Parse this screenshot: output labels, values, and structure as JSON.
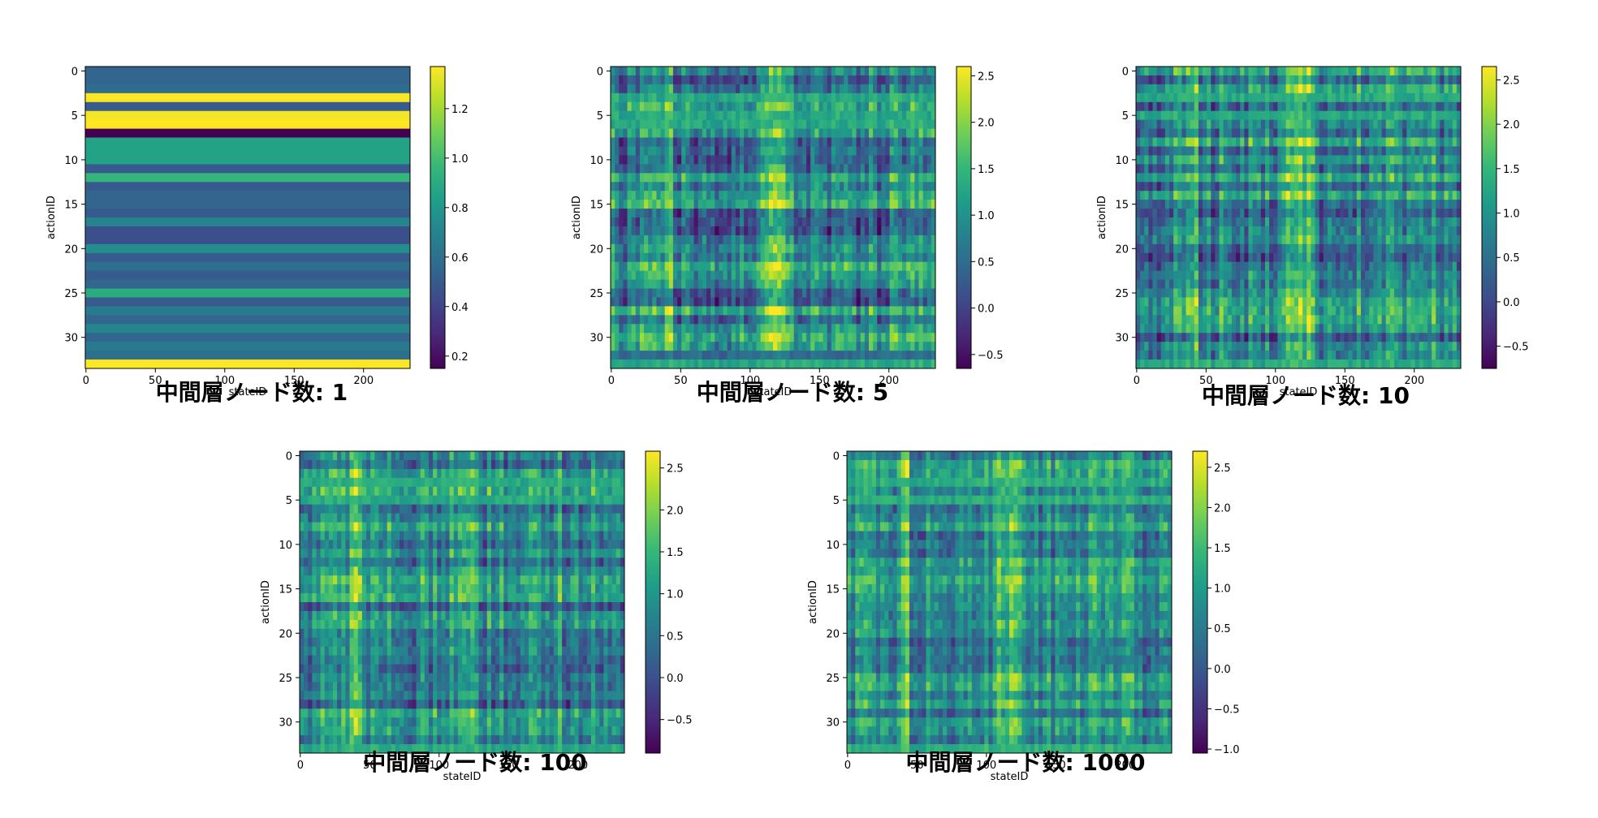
{
  "colors": {
    "colormap": "viridis",
    "viridis_stops": [
      "#440154",
      "#482878",
      "#3e4989",
      "#31688e",
      "#26828e",
      "#1f9e89",
      "#35b779",
      "#6ece58",
      "#b5de2b",
      "#fde725"
    ]
  },
  "chart_data": [
    {
      "type": "heatmap",
      "title": "中間層ノード数: 1",
      "xlabel": "stateID",
      "ylabel": "actionID",
      "n_cols": 234,
      "n_rows": 34,
      "x_ticks": [
        0,
        50,
        100,
        150,
        200
      ],
      "y_ticks": [
        0,
        5,
        10,
        15,
        20,
        25,
        30
      ],
      "colorbar": {
        "min": 0.15,
        "max": 1.37,
        "ticks": [
          0.2,
          0.4,
          0.6,
          0.8,
          1.0,
          1.2
        ],
        "tick_labels": [
          "0.2",
          "0.4",
          "0.6",
          "0.8",
          "1.0",
          "1.2"
        ]
      },
      "row_values": [
        0.55,
        0.55,
        0.58,
        1.37,
        0.5,
        1.35,
        1.37,
        0.15,
        0.85,
        0.85,
        0.85,
        0.5,
        0.95,
        0.5,
        0.55,
        0.55,
        0.5,
        0.7,
        0.45,
        0.45,
        0.75,
        0.5,
        0.6,
        0.5,
        0.55,
        0.9,
        0.5,
        0.65,
        0.55,
        0.7,
        0.55,
        0.65,
        0.6,
        1.37
      ],
      "pattern": "rows"
    },
    {
      "type": "heatmap",
      "title": "中間層ノード数: 5",
      "xlabel": "stateID",
      "ylabel": "actionID",
      "n_cols": 234,
      "n_rows": 34,
      "x_ticks": [
        0,
        50,
        100,
        150,
        200
      ],
      "y_ticks": [
        0,
        5,
        10,
        15,
        20,
        25,
        30
      ],
      "colorbar": {
        "min": -0.65,
        "max": 2.6,
        "ticks": [
          -0.5,
          0.0,
          0.5,
          1.0,
          1.5,
          2.0,
          2.5
        ],
        "tick_labels": [
          "−0.5",
          "0.0",
          "0.5",
          "1.0",
          "1.5",
          "2.0",
          "2.5"
        ]
      },
      "pattern": "columns",
      "seed": 5,
      "uniform_rows": {
        "3": 1.3,
        "5": 1.3,
        "6": 1.3,
        "32": 0.5,
        "33": 1.3
      },
      "bright_bands": [
        [
          38,
          44
        ],
        [
          108,
          124
        ]
      ]
    },
    {
      "type": "heatmap",
      "title": "中間層ノード数: 10",
      "xlabel": "stateID",
      "ylabel": "actionID",
      "n_cols": 234,
      "n_rows": 34,
      "x_ticks": [
        0,
        50,
        100,
        150,
        200
      ],
      "y_ticks": [
        0,
        5,
        10,
        15,
        20,
        25,
        30
      ],
      "colorbar": {
        "min": -0.75,
        "max": 2.65,
        "ticks": [
          -0.5,
          0.0,
          0.5,
          1.0,
          1.5,
          2.0,
          2.5
        ],
        "tick_labels": [
          "−0.5",
          "0.0",
          "0.5",
          "1.0",
          "1.5",
          "2.0",
          "2.5"
        ]
      },
      "pattern": "columns",
      "seed": 10,
      "uniform_rows": {
        "3": 1.3,
        "5": 1.3,
        "33": 1.3
      },
      "bright_bands": [
        [
          36,
          44
        ],
        [
          108,
          126
        ]
      ]
    },
    {
      "type": "heatmap",
      "title": "中間層ノード数: 100",
      "xlabel": "stateID",
      "ylabel": "actionID",
      "n_cols": 234,
      "n_rows": 34,
      "x_ticks": [
        0,
        50,
        100,
        150,
        200
      ],
      "y_ticks": [
        0,
        5,
        10,
        15,
        20,
        25,
        30
      ],
      "colorbar": {
        "min": -0.9,
        "max": 2.7,
        "ticks": [
          -0.5,
          0.0,
          0.5,
          1.0,
          1.5,
          2.0,
          2.5
        ],
        "tick_labels": [
          "−0.5",
          "0.0",
          "0.5",
          "1.0",
          "1.5",
          "2.0",
          "2.5"
        ]
      },
      "pattern": "columns",
      "seed": 100,
      "uniform_rows": {
        "3": 1.3,
        "5": 1.3,
        "33": 1.3
      },
      "bright_bands": [
        [
          36,
          44
        ],
        [
          108,
          126
        ]
      ]
    },
    {
      "type": "heatmap",
      "title": "中間層ノード数: 1000",
      "xlabel": "stateID",
      "ylabel": "actionID",
      "n_cols": 234,
      "n_rows": 34,
      "x_ticks": [
        0,
        50,
        100,
        150,
        200
      ],
      "y_ticks": [
        0,
        5,
        10,
        15,
        20,
        25,
        30
      ],
      "colorbar": {
        "min": -1.05,
        "max": 2.7,
        "ticks": [
          -1.0,
          -0.5,
          0.0,
          0.5,
          1.0,
          1.5,
          2.0,
          2.5
        ],
        "tick_labels": [
          "−1.0",
          "−0.5",
          "0.0",
          "0.5",
          "1.0",
          "1.5",
          "2.0",
          "2.5"
        ]
      },
      "pattern": "columns",
      "seed": 1000,
      "uniform_rows": {
        "3": 1.3,
        "5": 1.3,
        "33": 1.3
      },
      "bright_bands": [
        [
          36,
          44
        ],
        [
          108,
          126
        ]
      ]
    }
  ]
}
